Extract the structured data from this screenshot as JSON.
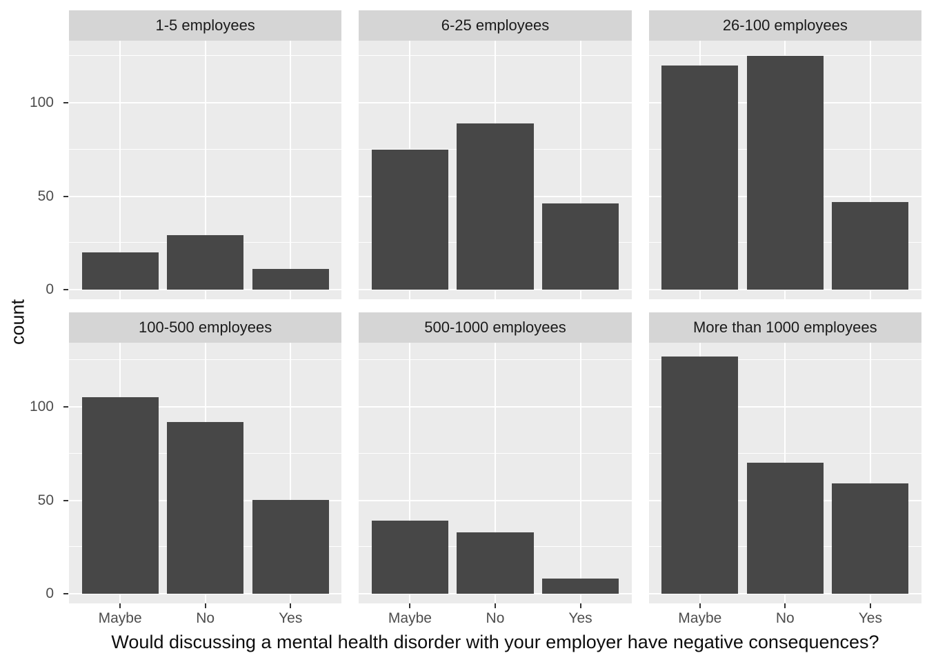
{
  "chart_data": {
    "type": "bar",
    "categories": [
      "Maybe",
      "No",
      "Yes"
    ],
    "facets": [
      {
        "label": "1-5 employees",
        "values": [
          20,
          29,
          11
        ]
      },
      {
        "label": "6-25 employees",
        "values": [
          75,
          89,
          46
        ]
      },
      {
        "label": "26-100 employees",
        "values": [
          120,
          125,
          47
        ]
      },
      {
        "label": "100-500 employees",
        "values": [
          105,
          92,
          50
        ]
      },
      {
        "label": "500-1000 employees",
        "values": [
          39,
          33,
          8
        ]
      },
      {
        "label": "More than 1000 employees",
        "values": [
          127,
          70,
          59
        ]
      }
    ],
    "title": "",
    "xlabel": "Would discussing a mental health disorder with your employer have negative consequences?",
    "ylabel": "count",
    "y_tick_values": [
      0,
      50,
      100
    ],
    "y_tick_labels": [
      "0",
      "50",
      "100"
    ],
    "y_minor_values": [
      25,
      75,
      125
    ],
    "ylim": [
      0,
      133
    ],
    "grid": "on",
    "legend": "none",
    "facet_layout": {
      "rows": 2,
      "cols": 3
    }
  },
  "style": {
    "bar_color": "#474747",
    "panel_bg": "#ebebeb",
    "strip_bg": "#d5d5d5",
    "grid_major_color": "#ffffff",
    "grid_minor_color": "#ffffff",
    "tick_mark_color": "#333333",
    "axis_text_color": "#4d4d4d",
    "strip_text_color": "#1a1a1a",
    "title_text_color": "#0d0d0d"
  }
}
